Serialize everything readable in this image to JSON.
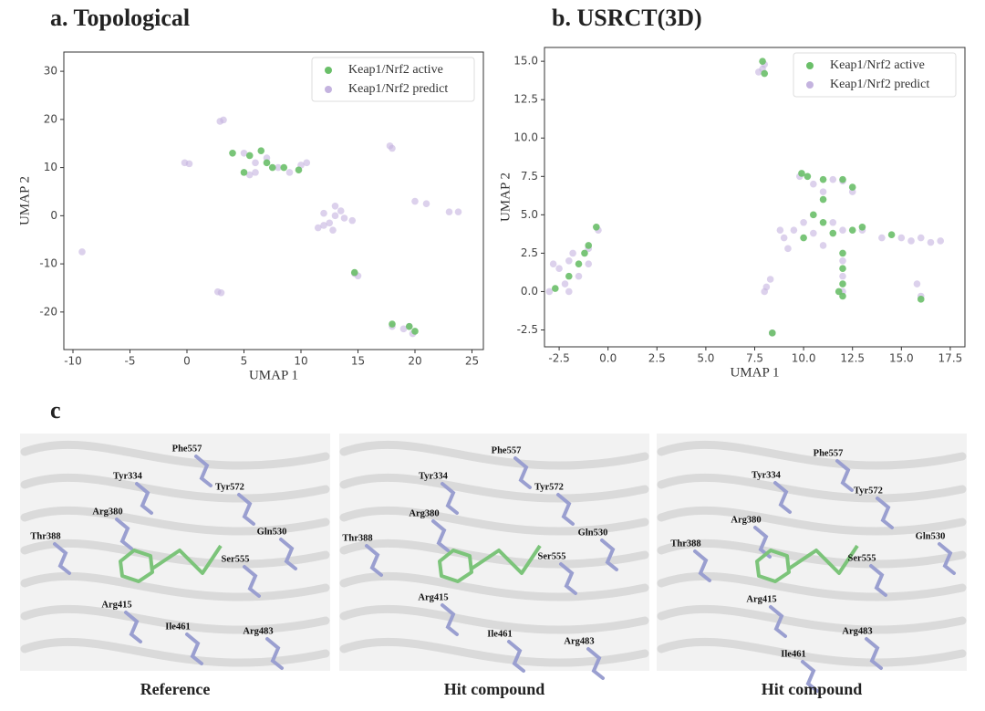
{
  "chart_data": [
    {
      "type": "scatter",
      "title": "a. Topological",
      "xlabel": "UMAP 1",
      "ylabel": "UMAP 2",
      "xlim": [
        -10.8,
        26
      ],
      "ylim": [
        -27.8,
        34
      ],
      "xticks": [
        -10,
        -5,
        0,
        5,
        10,
        15,
        20,
        25
      ],
      "yticks": [
        -20,
        -10,
        0,
        10,
        20,
        30
      ],
      "legend": "upper right",
      "series": [
        {
          "name": "Keap1/Nrf2 active",
          "color": "#6abf69",
          "x": [
            4,
            5.5,
            6.5,
            7,
            7.5,
            5,
            8.5,
            9.8,
            14.7,
            18,
            19.5,
            20
          ],
          "y": [
            13,
            12.5,
            13.5,
            11,
            10,
            9,
            10,
            9.5,
            -11.8,
            -22.5,
            -23,
            -24
          ]
        },
        {
          "name": "Keap1/Nrf2 predict",
          "color": "#c4b3df",
          "x": [
            -9.2,
            -0.2,
            0.2,
            2.7,
            3,
            2.9,
            3.2,
            5,
            6,
            7,
            8,
            9,
            10,
            10.5,
            6,
            5.5,
            12,
            12.5,
            13,
            13,
            13.5,
            12.8,
            11.5,
            13.8,
            14.7,
            15,
            17.8,
            18,
            18,
            19,
            19.8,
            19.5,
            20,
            21,
            23,
            23.8,
            14.5,
            12
          ],
          "y": [
            -7.5,
            11,
            10.8,
            -15.8,
            -16,
            19.6,
            19.9,
            13,
            11,
            12,
            10,
            9,
            10.5,
            11,
            9,
            8.5,
            -2,
            -1.5,
            0,
            2,
            1,
            -3,
            -2.5,
            -0.5,
            -12,
            -12.5,
            14.5,
            14,
            -23,
            -23.5,
            -24.5,
            -23,
            3,
            2.5,
            0.8,
            0.8,
            -1,
            0.5
          ]
        }
      ]
    },
    {
      "type": "scatter",
      "title": "b. USRCT(3D)",
      "xlabel": "UMAP 1",
      "ylabel": "UMAP 2",
      "xlim": [
        -3.25,
        18.25
      ],
      "ylim": [
        -3.6,
        15.9
      ],
      "xticks": [
        {
          "value": -2.5,
          "label": "-2.5"
        },
        {
          "value": 0,
          "label": "0.0"
        },
        2.5,
        {
          "value": 5,
          "label": "5.0"
        },
        7.5,
        {
          "value": 10,
          "label": "10.0"
        },
        12.5,
        {
          "value": 15,
          "label": "15.0"
        },
        17.5
      ],
      "yticks": [
        {
          "value": -2.5,
          "label": "-2.5"
        },
        {
          "value": 0,
          "label": "0.0"
        },
        2.5,
        {
          "value": 5,
          "label": "5.0"
        },
        7.5,
        {
          "value": 10,
          "label": "10.0"
        },
        12.5,
        {
          "value": 15,
          "label": "15.0"
        }
      ],
      "legend": "upper right",
      "series": [
        {
          "name": "Keap1/Nrf2 active",
          "color": "#6abf69",
          "x": [
            -2.7,
            -2,
            -1.5,
            -1,
            -0.6,
            -1.2,
            7.9,
            8,
            8.4,
            9.9,
            10.2,
            11,
            12,
            12.5,
            10.5,
            11,
            10,
            11.5,
            12,
            12,
            12,
            12,
            11.8,
            13,
            14.5,
            12.5,
            16,
            11
          ],
          "y": [
            0.2,
            1,
            1.8,
            3,
            4.2,
            2.5,
            15,
            14.2,
            -2.7,
            7.7,
            7.5,
            7.3,
            7.3,
            6.8,
            5,
            4.5,
            3.5,
            3.8,
            2.5,
            1.5,
            0.5,
            -0.3,
            0,
            4.2,
            3.7,
            4,
            -0.5,
            6
          ]
        },
        {
          "name": "Keap1/Nrf2 predict",
          "color": "#c4b3df",
          "x": [
            -3,
            -2.5,
            -2,
            -1.5,
            -1,
            -2.2,
            -1.8,
            -1,
            -0.5,
            -2.8,
            -2,
            7.9,
            8,
            7.7,
            8.1,
            8.3,
            8,
            8.4,
            9,
            9.5,
            10,
            9.8,
            10.5,
            11,
            11.5,
            12,
            12.5,
            13,
            12,
            11,
            12,
            12,
            12,
            11.5,
            10.5,
            14,
            15,
            15.5,
            16,
            16.5,
            17,
            15.8,
            16,
            8.8,
            9.2
          ],
          "y": [
            0,
            1.5,
            2,
            1,
            1.8,
            0.5,
            2.5,
            2.8,
            4,
            1.8,
            0,
            14.5,
            14.8,
            14.3,
            0.3,
            0.8,
            0,
            -2.7,
            3.5,
            4,
            4.5,
            7.5,
            7,
            6.5,
            7.3,
            7.2,
            6.5,
            4,
            4,
            3,
            2,
            1,
            0,
            4.5,
            3.8,
            3.5,
            3.5,
            3.3,
            3.5,
            3.2,
            3.3,
            0.5,
            -0.3,
            4,
            2.8
          ]
        }
      ]
    }
  ],
  "panel_c": {
    "label": "c",
    "panels": [
      {
        "caption": "Reference",
        "residues": [
          "Phe557",
          "Tyr334",
          "Tyr572",
          "Arg380",
          "Gln530",
          "Thr388",
          "Ser555",
          "Arg415",
          "Ile461",
          "Arg483"
        ]
      },
      {
        "caption": "Hit compound",
        "residues": [
          "Phe557",
          "Tyr334",
          "Tyr572",
          "Arg380",
          "Gln530",
          "Thr388",
          "Ser555",
          "Arg415",
          "Ile461",
          "Arg483"
        ]
      },
      {
        "caption": "Hit compound",
        "residues": [
          "Phe557",
          "Tyr334",
          "Tyr572",
          "Arg380",
          "Gln530",
          "Thr388",
          "Ser555",
          "Arg415",
          "Arg483",
          "Ile461"
        ]
      }
    ]
  }
}
